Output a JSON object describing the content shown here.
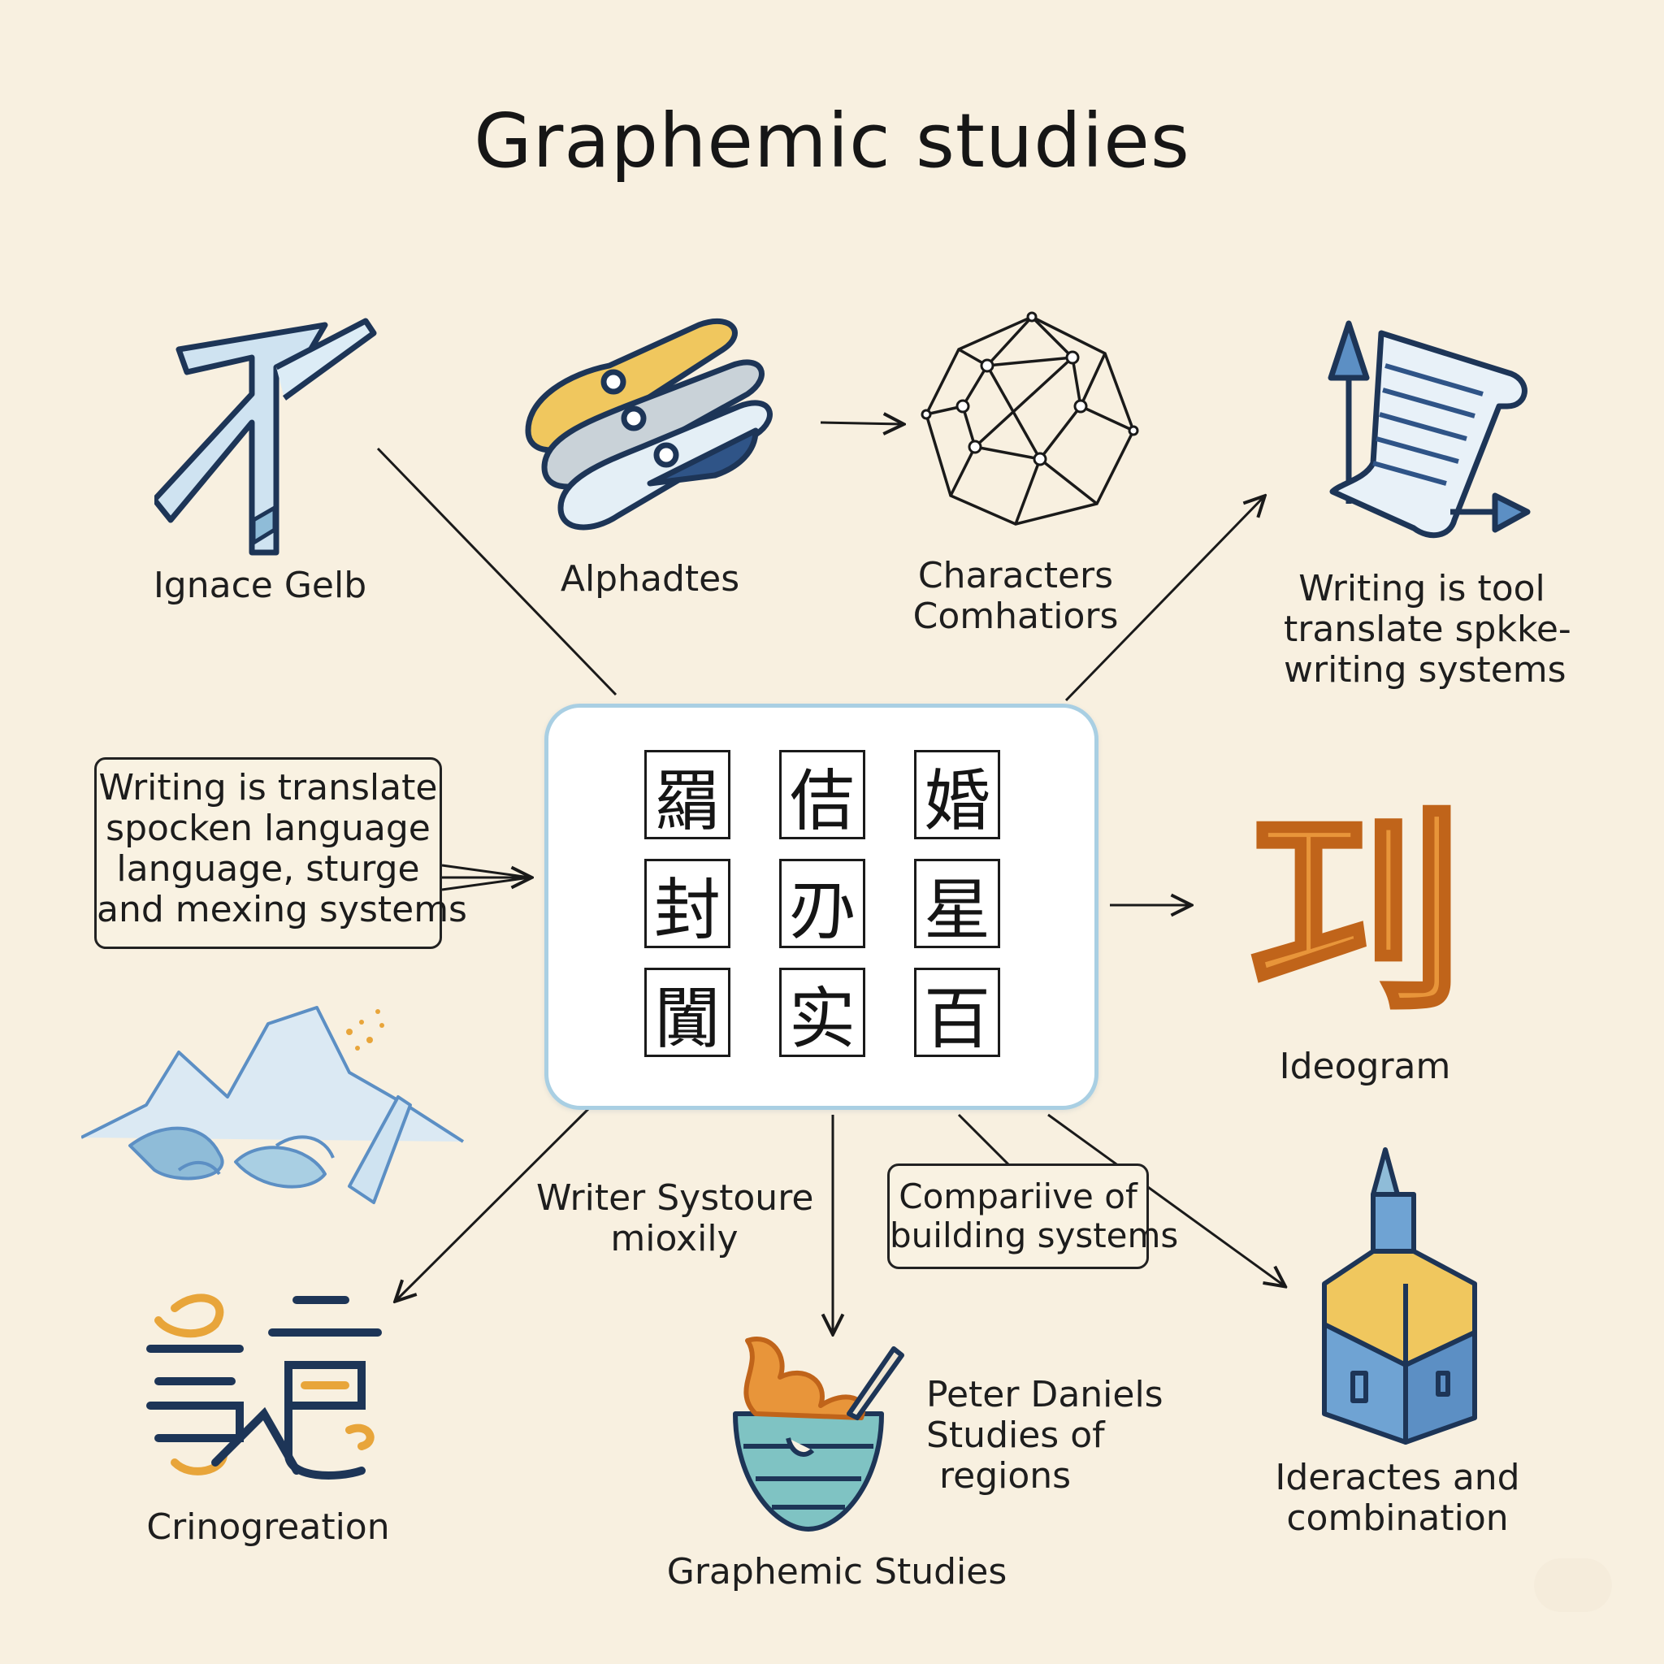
{
  "title": "Graphemic studies",
  "nodes": {
    "ignace_gelb": "Ignace Gelb",
    "alphabets": "Alphadtes",
    "characters": [
      "Characters",
      "Comhatiors"
    ],
    "writing_tool": [
      "Writing is tool",
      "translate spkke-",
      "writing systems"
    ],
    "ideogram": "Ideogram",
    "ideogram_glyph": "㓚",
    "writing_translate_box": [
      "Writing is translate",
      "spocken language",
      "language, sturge",
      "and mexing systems"
    ],
    "writer_system": [
      "Writer Systoure",
      "mioxily"
    ],
    "comparative_box": [
      "Compariive of",
      "building systems"
    ],
    "peter_daniels": [
      "Peter Daniels",
      "Studies of",
      "regions"
    ],
    "graphemic_studies": "Graphemic Studies",
    "crinogreation": "Crinogreation",
    "ideractes": [
      "Ideractes and",
      "combination"
    ]
  },
  "center_glyphs": [
    "羂",
    "佶",
    "婚",
    "封",
    "刅",
    "星",
    "闐",
    "实",
    "百"
  ],
  "colors": {
    "background": "#f8f0e0",
    "panel_border": "#a9cfe3",
    "ideogram_orange": "#e8953a",
    "navy": "#1d3557",
    "light_blue": "#8fbcd8"
  },
  "icons": [
    "rune-icon",
    "alphabet-strips-icon",
    "network-polyhedron-icon",
    "scroll-arrows-icon",
    "mountain-landscape-icon",
    "script-characters-icon",
    "bowl-flame-icon",
    "tower-building-icon"
  ]
}
